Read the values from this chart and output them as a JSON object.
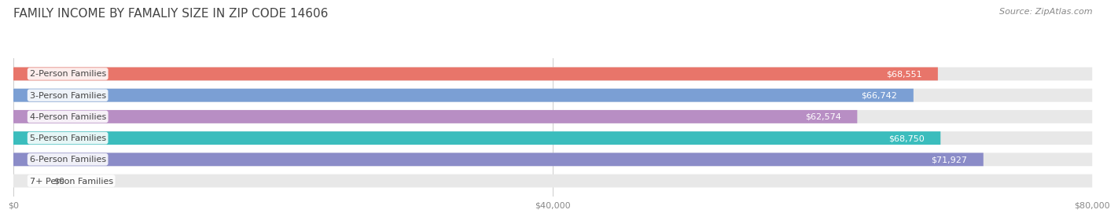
{
  "title": "FAMILY INCOME BY FAMALIY SIZE IN ZIP CODE 14606",
  "source": "Source: ZipAtlas.com",
  "categories": [
    "2-Person Families",
    "3-Person Families",
    "4-Person Families",
    "5-Person Families",
    "6-Person Families",
    "7+ Person Families"
  ],
  "values": [
    68551,
    66742,
    62574,
    68750,
    71927,
    0
  ],
  "labels": [
    "$68,551",
    "$66,742",
    "$62,574",
    "$68,750",
    "$71,927",
    "$0"
  ],
  "bar_colors": [
    "#E8756A",
    "#7B9FD4",
    "#B88EC4",
    "#3BBDBD",
    "#8B8CC8",
    "#F4A0B0"
  ],
  "bar_bg_color": "#E8E8E8",
  "xlim": [
    0,
    80000
  ],
  "xticks": [
    0,
    40000,
    80000
  ],
  "xtick_labels": [
    "$0",
    "$40,000",
    "$80,000"
  ],
  "title_fontsize": 11,
  "source_fontsize": 8,
  "label_fontsize": 8,
  "category_fontsize": 8,
  "bar_height": 0.62,
  "background_color": "#FFFFFF"
}
